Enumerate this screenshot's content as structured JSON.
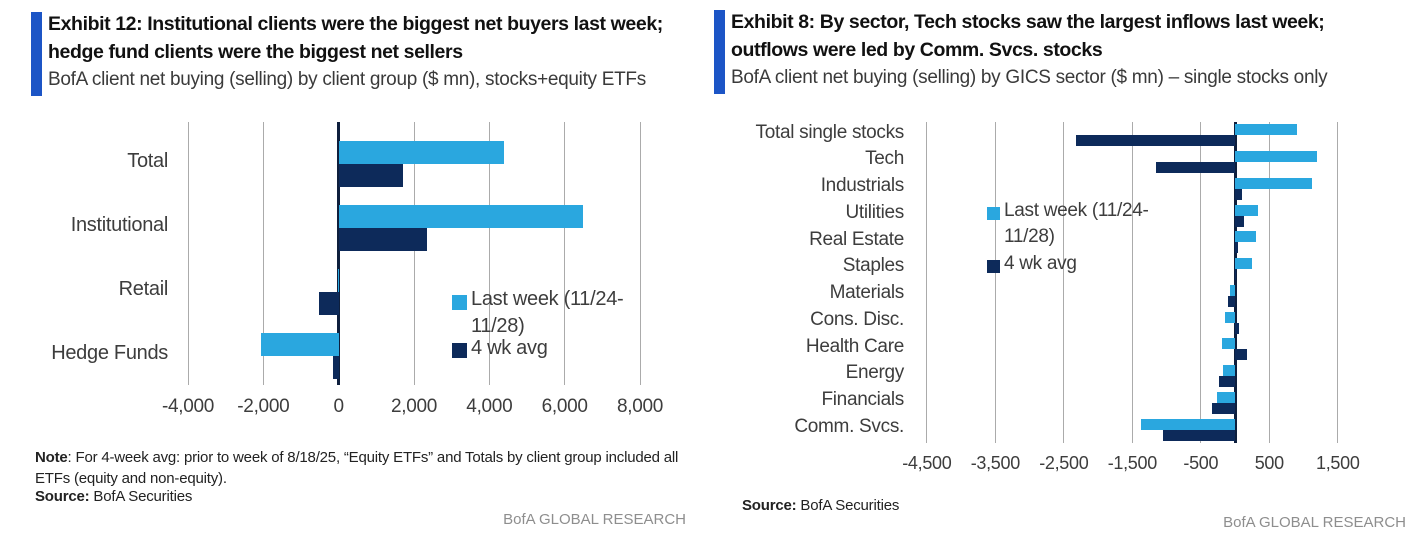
{
  "colors": {
    "accent_bar": "#1C55C6",
    "last_week": "#2AA7DF",
    "four_wk_avg": "#0D2A5A",
    "gridline": "#ABABAB",
    "zero_line": "#0E1F3D",
    "brand_text": "#8E8E8E"
  },
  "chart_data": [
    {
      "type": "bar",
      "orientation": "horizontal",
      "title": "Exhibit 12: Institutional clients were the biggest net buyers last week; hedge fund clients were the biggest net sellers",
      "title_lines": [
        "Exhibit 12: Institutional clients were the biggest net buyers last week;",
        "hedge fund clients were the biggest net sellers"
      ],
      "subtitle": "BofA client net buying (selling) by client group ($ mn), stocks+equity ETFs",
      "categories": [
        "Total",
        "Institutional",
        "Retail",
        "Hedge Funds"
      ],
      "series": [
        {
          "name": "Last week (11/24-11/28)",
          "color_key": "last_week",
          "values": [
            4400,
            6500,
            -30,
            -2070
          ]
        },
        {
          "name": "4 wk avg",
          "color_key": "four_wk_avg",
          "values": [
            1700,
            2350,
            -520,
            -160
          ]
        }
      ],
      "xlim": [
        -4000,
        8000
      ],
      "xticks": [
        -4000,
        -2000,
        0,
        2000,
        4000,
        6000,
        8000
      ],
      "xtick_labels": [
        "-4,000",
        "-2,000",
        "0",
        "2,000",
        "4,000",
        "6,000",
        "8,000"
      ],
      "grid": true,
      "legend_position": "inside middle-right",
      "legend_lines_series1": [
        "Last week (11/24-",
        "11/28)"
      ],
      "legend_label_series2": "4 wk avg"
    },
    {
      "type": "bar",
      "orientation": "horizontal",
      "title": "Exhibit 8: By sector, Tech stocks saw the largest inflows last week; outflows were led by Comm. Svcs. stocks",
      "title_lines": [
        "Exhibit 8: By sector, Tech stocks saw the largest inflows last week;",
        "outflows were led by Comm. Svcs. stocks"
      ],
      "subtitle": "BofA client net buying (selling) by GICS sector ($ mn) – single stocks only",
      "categories": [
        "Total single stocks",
        "Tech",
        "Industrials",
        "Utilities",
        "Real Estate",
        "Staples",
        "Materials",
        "Cons. Disc.",
        "Health Care",
        "Energy",
        "Financials",
        "Comm. Svcs."
      ],
      "series": [
        {
          "name": "Last week (11/24-11/28)",
          "color_key": "last_week",
          "values": [
            900,
            1200,
            1120,
            340,
            300,
            245,
            -70,
            -150,
            -185,
            -170,
            -270,
            -1380
          ]
        },
        {
          "name": "4 wk avg",
          "color_key": "four_wk_avg",
          "values": [
            -2320,
            -1160,
            100,
            130,
            50,
            20,
            -100,
            60,
            180,
            -230,
            -330,
            -1050
          ]
        }
      ],
      "xlim": [
        -4600,
        1620
      ],
      "xticks": [
        -4500,
        -3500,
        -2500,
        -1500,
        -500,
        500,
        1500
      ],
      "xtick_labels": [
        "-4,500",
        "-3,500",
        "-2,500",
        "-1,500",
        "-500",
        "500",
        "1,500"
      ],
      "grid": true,
      "legend_position": "inside middle-left",
      "legend_lines_series1": [
        "Last week (11/24-",
        "11/28)"
      ],
      "legend_label_series2": "4 wk avg"
    }
  ],
  "panels": [
    {
      "note_bold": "Note",
      "note_rest": ": For 4-week avg: prior to week of 8/18/25, “Equity ETFs” and Totals by client group included all ETFs (equity and non-equity).",
      "source_label": "Source:",
      "source_value": " BofA Securities",
      "brand": "BofA GLOBAL RESEARCH"
    },
    {
      "source_label": "Source:",
      "source_value": " BofA Securities",
      "brand": "BofA GLOBAL RESEARCH"
    }
  ]
}
